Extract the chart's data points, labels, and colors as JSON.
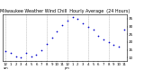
{
  "title": "Milwaukee Weather Wind Chill  Hourly Average  (24 Hours)",
  "title_fontsize": 3.5,
  "x_hours": [
    0,
    1,
    2,
    3,
    4,
    5,
    6,
    7,
    8,
    9,
    10,
    11,
    12,
    13,
    14,
    15,
    16,
    17,
    18,
    19,
    20,
    21,
    22,
    23
  ],
  "y_values": [
    14,
    13,
    11,
    10,
    13,
    11,
    12,
    15,
    19,
    23,
    27,
    31,
    34,
    36,
    35,
    32,
    30,
    28,
    24,
    22,
    20,
    18,
    17,
    28
  ],
  "dot_color": "#0000cc",
  "dot_size": 1.5,
  "background_color": "#ffffff",
  "grid_color": "#999999",
  "ylim": [
    8,
    38
  ],
  "xlim": [
    -0.5,
    23.5
  ],
  "ylabel_fontsize": 3.0,
  "xlabel_fontsize": 2.8,
  "yticks": [
    10,
    15,
    20,
    25,
    30,
    35
  ],
  "ytick_labels": [
    "10",
    "15",
    "20",
    "25",
    "30",
    "35"
  ],
  "xtick_hours": [
    0,
    1,
    2,
    3,
    4,
    5,
    6,
    7,
    8,
    9,
    10,
    11,
    12,
    13,
    14,
    15,
    16,
    17,
    18,
    19,
    20,
    21,
    22,
    23
  ],
  "xtick_labels": [
    "12",
    "1",
    "2",
    "3",
    "4",
    "5",
    "6",
    "7",
    "8",
    "9",
    "10",
    "11",
    "12",
    "1",
    "2",
    "3",
    "4",
    "5",
    "6",
    "7",
    "8",
    "9",
    "10",
    "11"
  ],
  "xtick_sublabels": [
    "am",
    "",
    "",
    "",
    "",
    "",
    "",
    "",
    "",
    "",
    "",
    "",
    "pm",
    "",
    "",
    "",
    "",
    "",
    "",
    "",
    "",
    "",
    "",
    ""
  ],
  "vgrid_positions": [
    0,
    4,
    8,
    12,
    16,
    20
  ]
}
